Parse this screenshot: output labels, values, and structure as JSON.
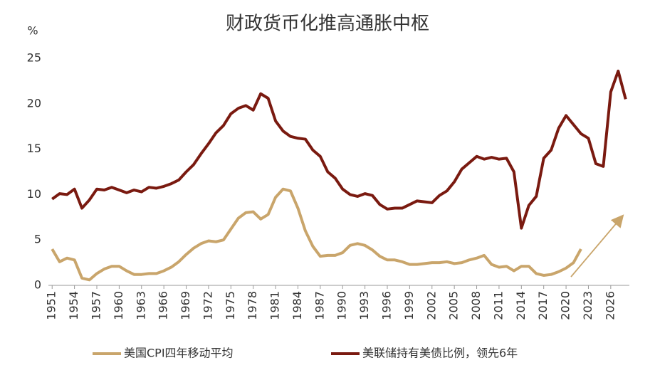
{
  "chart_data": {
    "type": "line",
    "title": "财政货币化推高通胀中枢",
    "y_label": "%",
    "x": [
      1951,
      1952,
      1953,
      1954,
      1955,
      1956,
      1957,
      1958,
      1959,
      1960,
      1961,
      1962,
      1963,
      1964,
      1965,
      1966,
      1967,
      1968,
      1969,
      1970,
      1971,
      1972,
      1973,
      1974,
      1975,
      1976,
      1977,
      1978,
      1979,
      1980,
      1981,
      1982,
      1983,
      1984,
      1985,
      1986,
      1987,
      1988,
      1989,
      1990,
      1991,
      1992,
      1993,
      1994,
      1995,
      1996,
      1997,
      1998,
      1999,
      2000,
      2001,
      2002,
      2003,
      2004,
      2005,
      2006,
      2007,
      2008,
      2009,
      2010,
      2011,
      2012,
      2013,
      2014,
      2015,
      2016,
      2017,
      2018,
      2019,
      2020,
      2021,
      2022,
      2023,
      2024,
      2025,
      2026,
      2027,
      2028
    ],
    "series": [
      {
        "name": "美国CPI四年移动平均",
        "color": "#c9a56b",
        "values": [
          4.0,
          2.6,
          3.0,
          2.8,
          0.8,
          0.6,
          1.3,
          1.8,
          2.1,
          2.1,
          1.6,
          1.2,
          1.2,
          1.3,
          1.3,
          1.6,
          2.0,
          2.6,
          3.4,
          4.1,
          4.6,
          4.9,
          4.8,
          5.0,
          6.2,
          7.4,
          8.0,
          8.1,
          7.3,
          7.8,
          9.7,
          10.6,
          10.4,
          8.5,
          6.0,
          4.3,
          3.2,
          3.3,
          3.3,
          3.6,
          4.4,
          4.6,
          4.4,
          3.9,
          3.2,
          2.8,
          2.8,
          2.6,
          2.3,
          2.3,
          2.4,
          2.5,
          2.5,
          2.6,
          2.4,
          2.5,
          2.8,
          3.0,
          3.3,
          2.3,
          2.0,
          2.1,
          1.6,
          2.1,
          2.1,
          1.3,
          1.1,
          1.2,
          1.5,
          1.9,
          2.5,
          4.0,
          null,
          null,
          null,
          null,
          null,
          null
        ]
      },
      {
        "name": "美联储持有美债比例，领先6年",
        "color": "#7a1a10",
        "values": [
          9.5,
          10.1,
          10.0,
          10.6,
          8.5,
          9.4,
          10.6,
          10.5,
          10.8,
          10.5,
          10.2,
          10.5,
          10.3,
          10.8,
          10.7,
          10.9,
          11.2,
          11.6,
          12.5,
          13.3,
          14.5,
          15.6,
          16.8,
          17.6,
          18.9,
          19.5,
          19.8,
          19.3,
          21.1,
          20.6,
          18.1,
          17.0,
          16.4,
          16.2,
          16.1,
          14.9,
          14.2,
          12.5,
          11.8,
          10.6,
          10.0,
          9.8,
          10.1,
          9.9,
          8.9,
          8.4,
          8.5,
          8.5,
          8.9,
          9.3,
          9.2,
          9.1,
          9.9,
          10.4,
          11.4,
          12.8,
          13.5,
          14.2,
          13.9,
          14.1,
          13.9,
          14.0,
          12.5,
          6.3,
          8.8,
          9.8,
          14.0,
          14.9,
          17.3,
          18.7,
          17.7,
          16.7,
          16.2,
          13.4,
          13.1,
          21.3,
          23.6,
          20.5
        ]
      }
    ],
    "xlim": [
      1950.5,
      2028.5
    ],
    "xticks": [
      1951,
      1954,
      1957,
      1960,
      1963,
      1966,
      1969,
      1972,
      1975,
      1978,
      1981,
      1984,
      1987,
      1990,
      1993,
      1996,
      1999,
      2002,
      2005,
      2008,
      2011,
      2014,
      2017,
      2020,
      2023,
      2026
    ],
    "ylim": [
      0,
      25
    ],
    "yticks": [
      0,
      5,
      10,
      15,
      20,
      25
    ],
    "grid": false,
    "legend": "bottom"
  }
}
